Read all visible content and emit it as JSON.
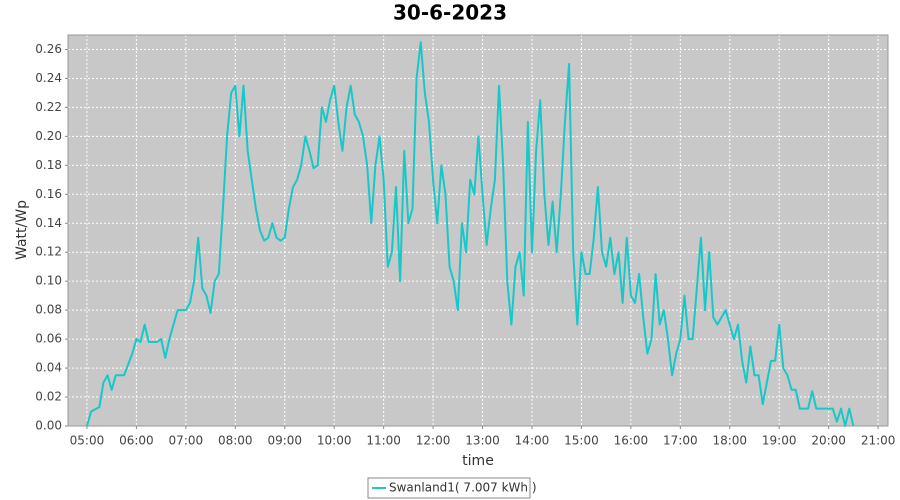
{
  "chart_data": {
    "type": "line",
    "title": "30-6-2023",
    "x_label": "time",
    "y_label": "Watt/Wp",
    "grid": true,
    "legend": "bottom",
    "xlim": [
      277,
      1272
    ],
    "xticks": [
      {
        "value": 300,
        "label": "05:00"
      },
      {
        "value": 360,
        "label": "06:00"
      },
      {
        "value": 420,
        "label": "07:00"
      },
      {
        "value": 480,
        "label": "08:00"
      },
      {
        "value": 540,
        "label": "09:00"
      },
      {
        "value": 600,
        "label": "10:00"
      },
      {
        "value": 660,
        "label": "11:00"
      },
      {
        "value": 720,
        "label": "12:00"
      },
      {
        "value": 780,
        "label": "13:00"
      },
      {
        "value": 840,
        "label": "14:00"
      },
      {
        "value": 900,
        "label": "15:00"
      },
      {
        "value": 960,
        "label": "16:00"
      },
      {
        "value": 1020,
        "label": "17:00"
      },
      {
        "value": 1080,
        "label": "18:00"
      },
      {
        "value": 1140,
        "label": "19:00"
      },
      {
        "value": 1200,
        "label": "20:00"
      },
      {
        "value": 1260,
        "label": "21:00"
      }
    ],
    "ylim": [
      0,
      0.27
    ],
    "yticks": [
      {
        "value": 0,
        "label": "0.00"
      },
      {
        "value": 0.02,
        "label": "0.02"
      },
      {
        "value": 0.04,
        "label": "0.04"
      },
      {
        "value": 0.06,
        "label": "0.06"
      },
      {
        "value": 0.08,
        "label": "0.08"
      },
      {
        "value": 0.1,
        "label": "0.10"
      },
      {
        "value": 0.12,
        "label": "0.12"
      },
      {
        "value": 0.14,
        "label": "0.14"
      },
      {
        "value": 0.16,
        "label": "0.16"
      },
      {
        "value": 0.18,
        "label": "0.18"
      },
      {
        "value": 0.2,
        "label": "0.20"
      },
      {
        "value": 0.22,
        "label": "0.22"
      },
      {
        "value": 0.24,
        "label": "0.24"
      },
      {
        "value": 0.26,
        "label": "0.26"
      }
    ],
    "x": [
      300,
      305,
      315,
      320,
      325,
      330,
      335,
      345,
      355,
      360,
      365,
      370,
      375,
      385,
      390,
      395,
      400,
      410,
      420,
      425,
      430,
      435,
      440,
      445,
      450,
      455,
      460,
      465,
      470,
      475,
      480,
      485,
      490,
      495,
      500,
      505,
      510,
      515,
      520,
      525,
      530,
      535,
      540,
      545,
      550,
      555,
      560,
      565,
      570,
      575,
      580,
      585,
      590,
      595,
      600,
      605,
      610,
      615,
      620,
      625,
      630,
      635,
      640,
      645,
      650,
      655,
      660,
      665,
      670,
      675,
      680,
      685,
      690,
      695,
      700,
      705,
      710,
      715,
      720,
      725,
      730,
      735,
      740,
      745,
      750,
      755,
      760,
      765,
      770,
      775,
      780,
      785,
      790,
      795,
      800,
      805,
      810,
      815,
      820,
      825,
      830,
      835,
      840,
      845,
      850,
      855,
      860,
      865,
      870,
      875,
      880,
      885,
      890,
      895,
      900,
      905,
      910,
      915,
      920,
      925,
      930,
      935,
      940,
      945,
      950,
      955,
      960,
      965,
      970,
      975,
      980,
      985,
      990,
      995,
      1000,
      1005,
      1010,
      1015,
      1020,
      1025,
      1030,
      1035,
      1040,
      1045,
      1050,
      1055,
      1060,
      1065,
      1070,
      1075,
      1080,
      1085,
      1090,
      1095,
      1100,
      1105,
      1110,
      1115,
      1120,
      1125,
      1130,
      1135,
      1140,
      1145,
      1150,
      1155,
      1160,
      1165,
      1175,
      1180,
      1185,
      1195,
      1205,
      1210,
      1215,
      1220,
      1225,
      1230
    ],
    "series": [
      {
        "name": "Swanland1( 7.007 kWh )",
        "color": "#17c8c8",
        "values": [
          0,
          0.01,
          0.013,
          0.03,
          0.035,
          0.025,
          0.035,
          0.035,
          0.05,
          0.06,
          0.058,
          0.07,
          0.058,
          0.058,
          0.06,
          0.047,
          0.06,
          0.08,
          0.08,
          0.085,
          0.1,
          0.13,
          0.095,
          0.09,
          0.078,
          0.1,
          0.105,
          0.15,
          0.2,
          0.23,
          0.235,
          0.2,
          0.235,
          0.19,
          0.17,
          0.15,
          0.135,
          0.128,
          0.13,
          0.14,
          0.13,
          0.128,
          0.13,
          0.15,
          0.165,
          0.17,
          0.18,
          0.2,
          0.19,
          0.178,
          0.18,
          0.22,
          0.21,
          0.225,
          0.235,
          0.21,
          0.19,
          0.22,
          0.235,
          0.215,
          0.21,
          0.2,
          0.18,
          0.14,
          0.18,
          0.2,
          0.17,
          0.11,
          0.12,
          0.165,
          0.1,
          0.19,
          0.14,
          0.15,
          0.24,
          0.265,
          0.23,
          0.21,
          0.17,
          0.14,
          0.18,
          0.16,
          0.11,
          0.1,
          0.08,
          0.14,
          0.12,
          0.17,
          0.16,
          0.2,
          0.16,
          0.125,
          0.15,
          0.17,
          0.235,
          0.18,
          0.1,
          0.07,
          0.11,
          0.12,
          0.09,
          0.21,
          0.12,
          0.19,
          0.225,
          0.16,
          0.125,
          0.155,
          0.12,
          0.16,
          0.21,
          0.25,
          0.12,
          0.07,
          0.12,
          0.105,
          0.105,
          0.13,
          0.165,
          0.12,
          0.11,
          0.13,
          0.105,
          0.12,
          0.085,
          0.13,
          0.09,
          0.085,
          0.105,
          0.075,
          0.05,
          0.06,
          0.105,
          0.07,
          0.08,
          0.06,
          0.035,
          0.05,
          0.06,
          0.09,
          0.06,
          0.06,
          0.095,
          0.13,
          0.08,
          0.12,
          0.075,
          0.07,
          0.075,
          0.08,
          0.07,
          0.06,
          0.07,
          0.045,
          0.03,
          0.055,
          0.035,
          0.035,
          0.015,
          0.03,
          0.045,
          0.045,
          0.07,
          0.04,
          0.035,
          0.025,
          0.025,
          0.012,
          0.012,
          0.024,
          0.012,
          0.012,
          0.012,
          0.003,
          0.012,
          0,
          0.012,
          0
        ]
      }
    ]
  }
}
